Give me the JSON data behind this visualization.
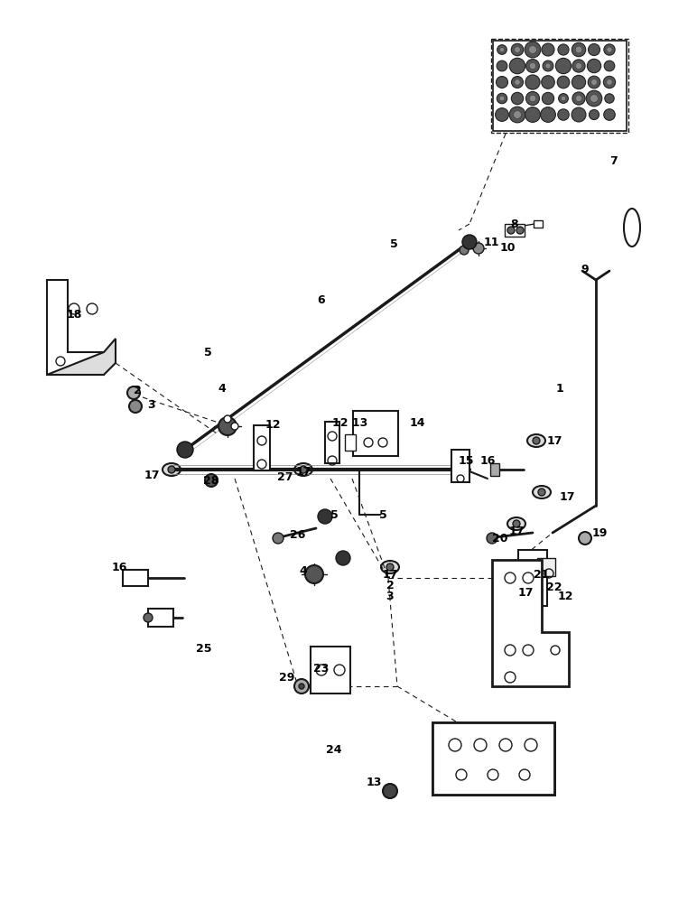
{
  "bg_color": "#ffffff",
  "lc": "#1a1a1a",
  "fig_width": 7.72,
  "fig_height": 10.0,
  "dpi": 100,
  "xmax": 772,
  "ymax": 1000,
  "labels": [
    [
      "1",
      620,
      430
    ],
    [
      "2",
      152,
      432
    ],
    [
      "3",
      168,
      448
    ],
    [
      "4",
      246,
      430
    ],
    [
      "5",
      230,
      390
    ],
    [
      "5",
      436,
      270
    ],
    [
      "5",
      370,
      570
    ],
    [
      "5",
      424,
      570
    ],
    [
      "6",
      356,
      332
    ],
    [
      "7",
      680,
      178
    ],
    [
      "8",
      570,
      248
    ],
    [
      "9",
      648,
      298
    ],
    [
      "10",
      562,
      274
    ],
    [
      "11",
      544,
      268
    ],
    [
      "12",
      302,
      470
    ],
    [
      "12 13",
      388,
      468
    ],
    [
      "12",
      626,
      660
    ],
    [
      "14",
      462,
      468
    ],
    [
      "15",
      516,
      510
    ],
    [
      "16",
      540,
      510
    ],
    [
      "16",
      132,
      628
    ],
    [
      "17",
      168,
      526
    ],
    [
      "17",
      336,
      522
    ],
    [
      "17",
      614,
      488
    ],
    [
      "17",
      628,
      550
    ],
    [
      "17",
      572,
      588
    ],
    [
      "17",
      432,
      636
    ],
    [
      "17",
      582,
      656
    ],
    [
      "18",
      82,
      348
    ],
    [
      "19",
      664,
      590
    ],
    [
      "20",
      554,
      596
    ],
    [
      "21",
      600,
      636
    ],
    [
      "22",
      614,
      650
    ],
    [
      "23",
      356,
      740
    ],
    [
      "24",
      370,
      830
    ],
    [
      "25",
      226,
      718
    ],
    [
      "26",
      330,
      592
    ],
    [
      "27",
      316,
      528
    ],
    [
      "28",
      234,
      532
    ],
    [
      "29",
      318,
      750
    ],
    [
      "2",
      432,
      648
    ],
    [
      "3",
      432,
      660
    ],
    [
      "4",
      336,
      632
    ],
    [
      "13",
      414,
      866
    ]
  ]
}
